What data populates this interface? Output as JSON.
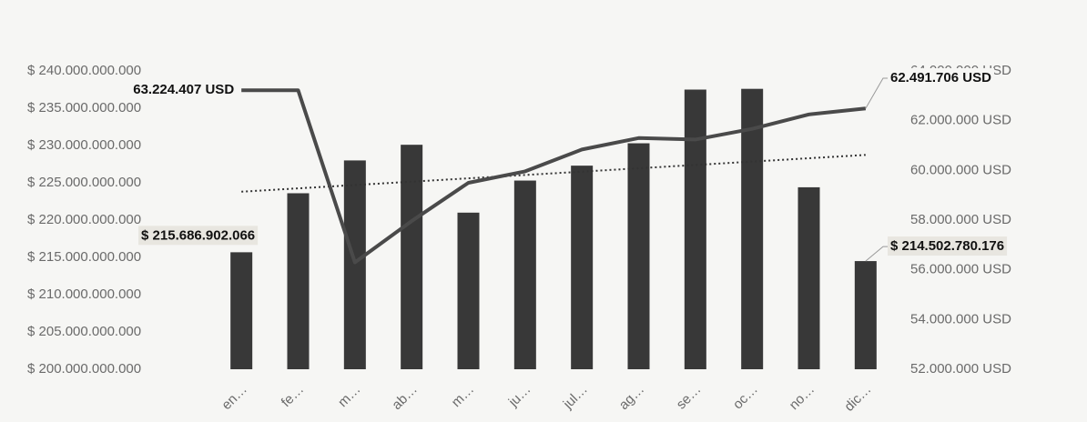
{
  "chart_data": {
    "type": "bar-line",
    "categories": [
      "en…",
      "fe…",
      "m…",
      "ab…",
      "m…",
      "ju…",
      "jul…",
      "ag…",
      "se…",
      "oc…",
      "no…",
      "dic…"
    ],
    "series": [
      {
        "type": "bar",
        "color": "#383838",
        "values": [
          215686902066,
          223600000000,
          228000000000,
          230100000000,
          221000000000,
          225300000000,
          227300000000,
          230300000000,
          237500000000,
          237600000000,
          224400000000,
          214502780176
        ],
        "value_labels": [
          "$ 215.686.902.066",
          null,
          null,
          null,
          null,
          null,
          null,
          null,
          null,
          null,
          null,
          "$ 214.502.780.176"
        ]
      },
      {
        "type": "line",
        "axis": "y2",
        "color": "#4a4a4a",
        "values": [
          63224407,
          63224407,
          56300000,
          57960000,
          59500000,
          59960000,
          60840000,
          61300000,
          61240000,
          61670000,
          62250000,
          62491706
        ],
        "value_labels": [
          "63.224.407 USD",
          null,
          null,
          null,
          null,
          null,
          null,
          null,
          null,
          null,
          null,
          "62.491.706 USD"
        ]
      }
    ],
    "trendline": true,
    "ylim": [
      200000000000,
      240000000000
    ],
    "yticks": [
      {
        "value": 200000000000,
        "label": "$ 200.000.000.000"
      },
      {
        "value": 205000000000,
        "label": "$ 205.000.000.000"
      },
      {
        "value": 210000000000,
        "label": "$ 210.000.000.000"
      },
      {
        "value": 215000000000,
        "label": "$ 215.000.000.000"
      },
      {
        "value": 220000000000,
        "label": "$ 220.000.000.000"
      },
      {
        "value": 225000000000,
        "label": "$ 225.000.000.000"
      },
      {
        "value": 230000000000,
        "label": "$ 230.000.000.000"
      },
      {
        "value": 235000000000,
        "label": "$ 235.000.000.000"
      },
      {
        "value": 240000000000,
        "label": "$ 240.000.000.000"
      }
    ],
    "y2lim": [
      52000000,
      64000000
    ],
    "y2ticks": [
      {
        "value": 52000000,
        "label": "52.000.000 USD"
      },
      {
        "value": 54000000,
        "label": "54.000.000 USD"
      },
      {
        "value": 56000000,
        "label": "56.000.000 USD"
      },
      {
        "value": 58000000,
        "label": "58.000.000 USD"
      },
      {
        "value": 60000000,
        "label": "60.000.000 USD"
      },
      {
        "value": 62000000,
        "label": "62.000.000 USD"
      },
      {
        "value": 64000000,
        "label": "64.000.000 USD"
      }
    ]
  }
}
